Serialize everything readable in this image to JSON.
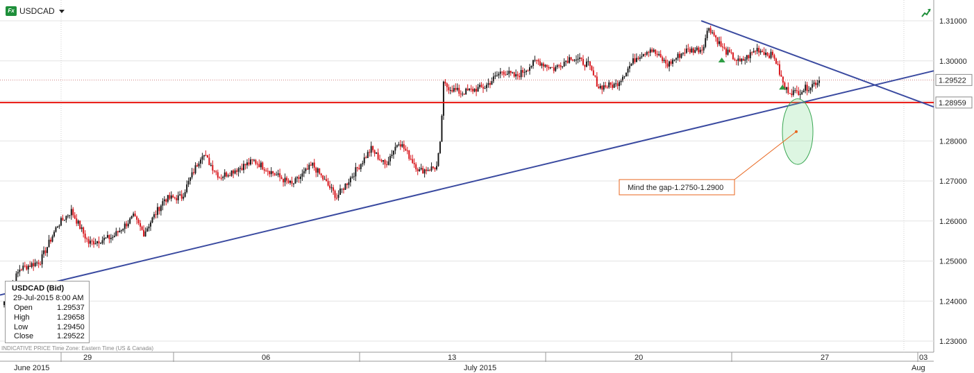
{
  "toolbar": {
    "symbol": "USDCAD",
    "logo_text": "Fx",
    "logo_icon": "fx-logo-icon",
    "dropdown_icon": "caret-down-icon",
    "expand_icon": "expand-chart-icon"
  },
  "info_box": {
    "title": "USDCAD (Bid)",
    "datetime": "29-Jul-2015 8:00 AM",
    "rows": [
      {
        "label": "Open",
        "value": "1.29537"
      },
      {
        "label": "High",
        "value": "1.29658"
      },
      {
        "label": "Low",
        "value": "1.29450"
      },
      {
        "label": "Close",
        "value": "1.29522"
      }
    ]
  },
  "footer_note": "INDICATIVE PRICE   Time Zone: Eastern Time (US & Canada)",
  "chart_data": {
    "type": "candlestick",
    "symbol": "USDCAD",
    "ylim": [
      1.225,
      1.312
    ],
    "y_ticks": [
      1.23,
      1.24,
      1.25,
      1.26,
      1.27,
      1.28,
      1.29,
      1.3,
      1.31
    ],
    "y_tick_labels": [
      "1.23000",
      "1.24000",
      "1.25000",
      "1.26000",
      "1.27000",
      "1.28000",
      "1.29000",
      "1.30000",
      "1.31000"
    ],
    "x_day_range": [
      24.5,
      34.0
    ],
    "x_tick_labels": [
      {
        "day": 29,
        "label": "29"
      },
      {
        "day": 36,
        "label": "06"
      },
      {
        "day": 43,
        "label": "13"
      },
      {
        "day": 50,
        "label": "20"
      },
      {
        "day": 57,
        "label": "27"
      },
      {
        "day": 64,
        "label": "03"
      }
    ],
    "month_labels": [
      {
        "label": "June 2015",
        "day": 25
      },
      {
        "label": "July 2015",
        "day": 44.5
      },
      {
        "label": "Aug",
        "day": 64
      }
    ],
    "current_price": {
      "value": 1.29522,
      "label": "1.29522"
    },
    "horizontal_level": {
      "value": 1.28959,
      "label": "1.28959",
      "color": "#e8140e"
    },
    "trendlines": [
      {
        "name": "",
        "from": {
          "bar": -2,
          "price": 1.2415
        },
        "to": {
          "bar": 1.0,
          "price": 1.2975
        },
        "color": "#3a4aa0"
      },
      {
        "name": "",
        "from": {
          "bar": 0.751,
          "price": 1.31
        },
        "to": {
          "bar": 1.0,
          "price": 1.2885
        },
        "color": "#3a4aa0"
      }
    ],
    "annotation": {
      "text": "Mind the gap-1.2750-1.2900",
      "ellipse_price_range": [
        1.275,
        1.29
      ]
    },
    "markers": [
      {
        "type": "triangle-up",
        "color": "#2e9e44",
        "at": 0.773,
        "price": 1.3003
      },
      {
        "type": "triangle-up",
        "color": "#2e9e44",
        "at": 0.838,
        "price": 1.2935
      }
    ],
    "series_segments": [
      {
        "start": 1.239,
        "end": 1.248,
        "bars": 10
      },
      {
        "start": 1.248,
        "end": 1.25,
        "bars": 12
      },
      {
        "start": 1.25,
        "end": 1.259,
        "bars": 10
      },
      {
        "start": 1.259,
        "end": 1.2625,
        "bars": 8
      },
      {
        "start": 1.2625,
        "end": 1.2545,
        "bars": 10
      },
      {
        "start": 1.2545,
        "end": 1.256,
        "bars": 14
      },
      {
        "start": 1.256,
        "end": 1.261,
        "bars": 12
      },
      {
        "start": 1.261,
        "end": 1.257,
        "bars": 6
      },
      {
        "start": 1.257,
        "end": 1.2655,
        "bars": 12
      },
      {
        "start": 1.2655,
        "end": 1.266,
        "bars": 10
      },
      {
        "start": 1.266,
        "end": 1.277,
        "bars": 12
      },
      {
        "start": 1.277,
        "end": 1.271,
        "bars": 10
      },
      {
        "start": 1.271,
        "end": 1.275,
        "bars": 20
      },
      {
        "start": 1.275,
        "end": 1.269,
        "bars": 22
      },
      {
        "start": 1.269,
        "end": 1.274,
        "bars": 12
      },
      {
        "start": 1.274,
        "end": 1.266,
        "bars": 14
      },
      {
        "start": 1.266,
        "end": 1.272,
        "bars": 10
      },
      {
        "start": 1.272,
        "end": 1.278,
        "bars": 10
      },
      {
        "start": 1.278,
        "end": 1.274,
        "bars": 8
      },
      {
        "start": 1.274,
        "end": 1.28,
        "bars": 8
      },
      {
        "start": 1.28,
        "end": 1.2725,
        "bars": 12
      },
      {
        "start": 1.2725,
        "end": 1.2735,
        "bars": 10
      },
      {
        "start": 1.2735,
        "end": 1.279,
        "bars": 2
      },
      {
        "start": 1.279,
        "end": 1.294,
        "bars": 2
      },
      {
        "start": 1.294,
        "end": 1.292,
        "bars": 10
      },
      {
        "start": 1.292,
        "end": 1.2935,
        "bars": 14
      },
      {
        "start": 1.2935,
        "end": 1.2975,
        "bars": 10
      },
      {
        "start": 1.2975,
        "end": 1.296,
        "bars": 8
      },
      {
        "start": 1.296,
        "end": 1.3,
        "bars": 12
      },
      {
        "start": 1.3,
        "end": 1.298,
        "bars": 10
      },
      {
        "start": 1.298,
        "end": 1.301,
        "bars": 10
      },
      {
        "start": 1.301,
        "end": 1.299,
        "bars": 10
      },
      {
        "start": 1.299,
        "end": 1.2935,
        "bars": 6
      },
      {
        "start": 1.2935,
        "end": 1.294,
        "bars": 10
      },
      {
        "start": 1.294,
        "end": 1.301,
        "bars": 12
      },
      {
        "start": 1.301,
        "end": 1.303,
        "bars": 8
      },
      {
        "start": 1.303,
        "end": 1.299,
        "bars": 10
      },
      {
        "start": 1.299,
        "end": 1.3025,
        "bars": 10
      },
      {
        "start": 1.3025,
        "end": 1.303,
        "bars": 10
      },
      {
        "start": 1.303,
        "end": 1.3085,
        "bars": 4
      },
      {
        "start": 1.3085,
        "end": 1.303,
        "bars": 8
      },
      {
        "start": 1.303,
        "end": 1.2995,
        "bars": 10
      },
      {
        "start": 1.2995,
        "end": 1.303,
        "bars": 10
      },
      {
        "start": 1.303,
        "end": 1.301,
        "bars": 10
      },
      {
        "start": 1.301,
        "end": 1.293,
        "bars": 6
      },
      {
        "start": 1.293,
        "end": 1.292,
        "bars": 6
      },
      {
        "start": 1.292,
        "end": 1.2935,
        "bars": 8
      },
      {
        "start": 1.2935,
        "end": 1.2952,
        "bars": 6
      }
    ]
  }
}
